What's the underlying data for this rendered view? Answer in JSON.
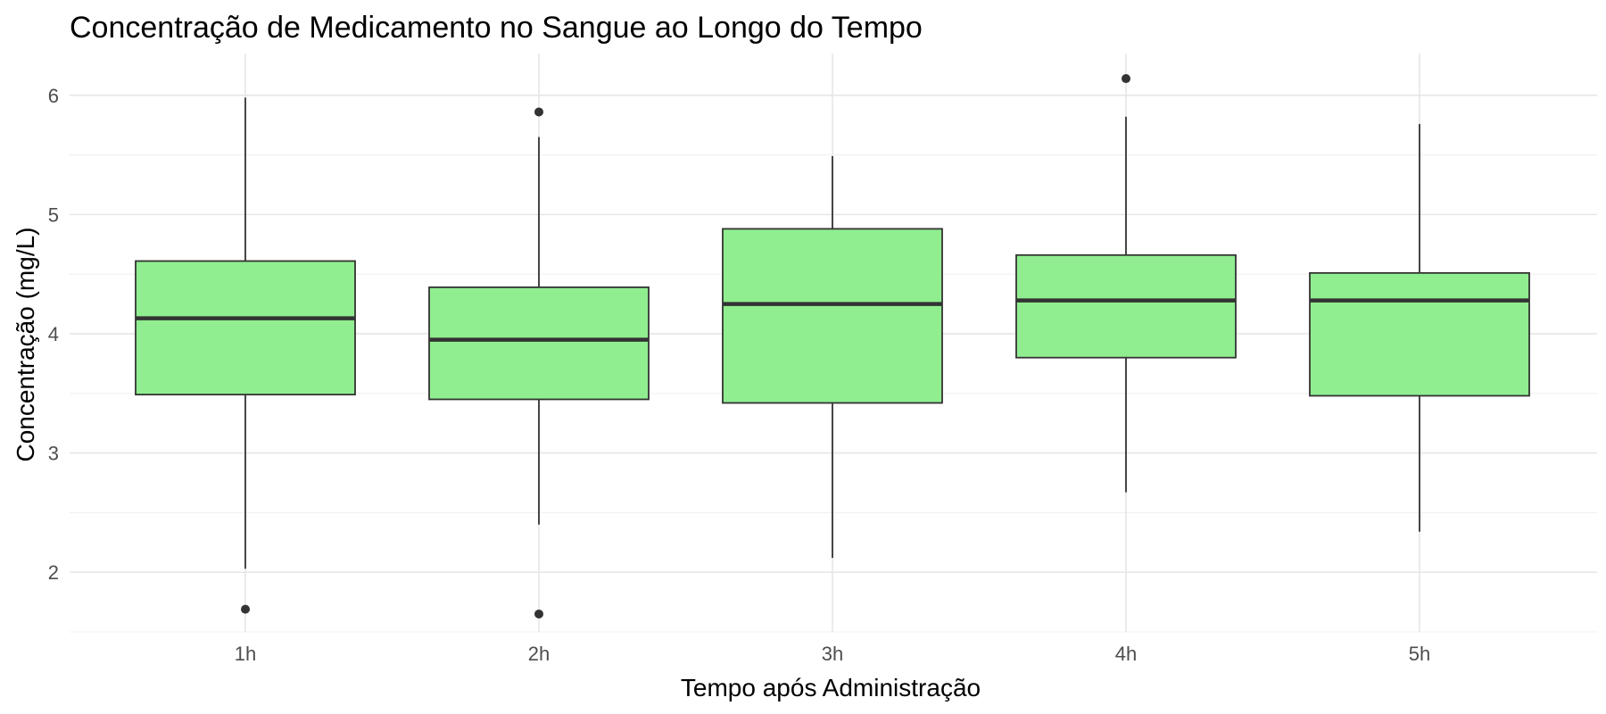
{
  "chart_data": {
    "type": "boxplot",
    "title": "Concentração de Medicamento no Sangue ao Longo do Tempo",
    "xlabel": "Tempo após Administração",
    "ylabel": "Concentração (mg/L)",
    "ylim": [
      1.5,
      6.35
    ],
    "yticks": [
      2,
      3,
      4,
      5,
      6
    ],
    "grid": true,
    "fill_color": "#90EE90",
    "line_color": "#333333",
    "categories": [
      "1h",
      "2h",
      "3h",
      "4h",
      "5h"
    ],
    "boxes": [
      {
        "category": "1h",
        "whisker_low": 2.03,
        "q1": 3.49,
        "median": 4.13,
        "q3": 4.61,
        "whisker_high": 5.98,
        "outliers": [
          1.69
        ]
      },
      {
        "category": "2h",
        "whisker_low": 2.4,
        "q1": 3.45,
        "median": 3.95,
        "q3": 4.39,
        "whisker_high": 5.65,
        "outliers": [
          5.86,
          1.65
        ]
      },
      {
        "category": "3h",
        "whisker_low": 2.12,
        "q1": 3.42,
        "median": 4.25,
        "q3": 4.88,
        "whisker_high": 5.49,
        "outliers": []
      },
      {
        "category": "4h",
        "whisker_low": 2.67,
        "q1": 3.8,
        "median": 4.28,
        "q3": 4.66,
        "whisker_high": 5.82,
        "outliers": [
          6.14
        ]
      },
      {
        "category": "5h",
        "whisker_low": 2.34,
        "q1": 3.48,
        "median": 4.28,
        "q3": 4.51,
        "whisker_high": 5.76,
        "outliers": []
      }
    ]
  }
}
